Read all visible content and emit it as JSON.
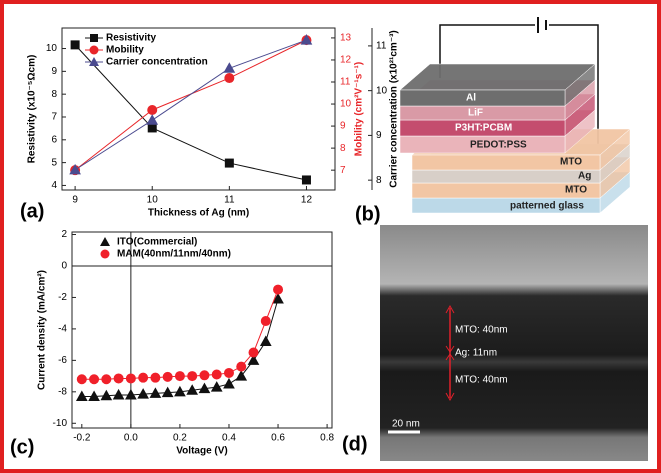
{
  "chart_data": [
    {
      "type": "line",
      "panel_label": "(a)",
      "x_label": "Thickness of Ag (nm)",
      "y_label": "Resistivity (x10⁻⁵Ωcm)",
      "y2_label": "Mobility (cm²V⁻¹s⁻¹)",
      "y3_label": "Carrier concentration (x10²¹cm⁻³)",
      "x": [
        9,
        10,
        11,
        12
      ],
      "xlim": [
        8.83,
        12.37
      ],
      "xticks": [
        9,
        10,
        11,
        12
      ],
      "ylim": [
        3.8,
        10.9
      ],
      "yticks": [
        4,
        5,
        6,
        7,
        8,
        9,
        10
      ],
      "y2lim": [
        6.1,
        13.45
      ],
      "y2ticks": [
        7,
        8,
        9,
        10,
        11,
        12,
        13
      ],
      "y3lim": [
        7.78,
        11.4
      ],
      "y3ticks": [
        8,
        9,
        10,
        11
      ],
      "series": [
        {
          "name": "Resistivity",
          "color": "#111111",
          "marker": "square",
          "values": [
            10.16,
            6.52,
            4.98,
            4.24
          ]
        },
        {
          "name": "Mobility",
          "color": "#e8262a",
          "marker": "circle",
          "axis": "y2",
          "values": [
            7.0,
            9.73,
            11.18,
            12.9
          ]
        },
        {
          "name": "Carrier concentration",
          "color": "#4b4b8f",
          "marker": "triangle",
          "axis": "y3",
          "values": [
            8.23,
            9.34,
            10.5,
            11.13
          ]
        }
      ]
    },
    {
      "type": "line",
      "panel_label": "(c)",
      "x_label": "Voltage (V)",
      "y_label": "Current density (mA/cm²)",
      "x": [
        -0.2,
        -0.15,
        -0.1,
        -0.05,
        0,
        0.05,
        0.1,
        0.15,
        0.2,
        0.25,
        0.3,
        0.35,
        0.4,
        0.45,
        0.5,
        0.55,
        0.6
      ],
      "xlim": [
        -0.24,
        0.82
      ],
      "xticks": [
        -0.2,
        {
          "value": 0,
          "label": "0.0"
        },
        0.2,
        0.4,
        0.6,
        0.8
      ],
      "ylim": [
        -10.3,
        2.16
      ],
      "yticks": [
        2,
        0,
        -2,
        -4,
        -6,
        -8,
        -10
      ],
      "series": [
        {
          "name": "ITO(Commercial)",
          "color": "#111111",
          "marker": "triangle",
          "values": [
            -8.3,
            -8.3,
            -8.25,
            -8.2,
            -8.2,
            -8.15,
            -8.1,
            -8.05,
            -8.0,
            -7.9,
            -7.8,
            -7.7,
            -7.5,
            -7.0,
            -6.0,
            -4.8,
            -2.1
          ]
        },
        {
          "name": "MAM(40nm/11nm/40nm)",
          "color": "#f0202a",
          "marker": "circle",
          "values": [
            -7.2,
            -7.2,
            -7.2,
            -7.15,
            -7.15,
            -7.1,
            -7.1,
            -7.05,
            -7.0,
            -7.0,
            -6.95,
            -6.9,
            -6.8,
            -6.4,
            -5.5,
            -3.5,
            -1.5
          ]
        }
      ]
    }
  ],
  "diagram": {
    "panel_label": "(b)",
    "layers": [
      "Al",
      "LiF",
      "P3HT:PCBM",
      "PEDOT:PSS",
      "MTO",
      "Ag",
      "MTO",
      "patterned glass"
    ]
  },
  "micrograph": {
    "panel_label": "(d)",
    "annotations": [
      "MTO: 40nm",
      "Ag: 11nm",
      "MTO: 40nm"
    ],
    "scale_bar": "20 nm"
  }
}
